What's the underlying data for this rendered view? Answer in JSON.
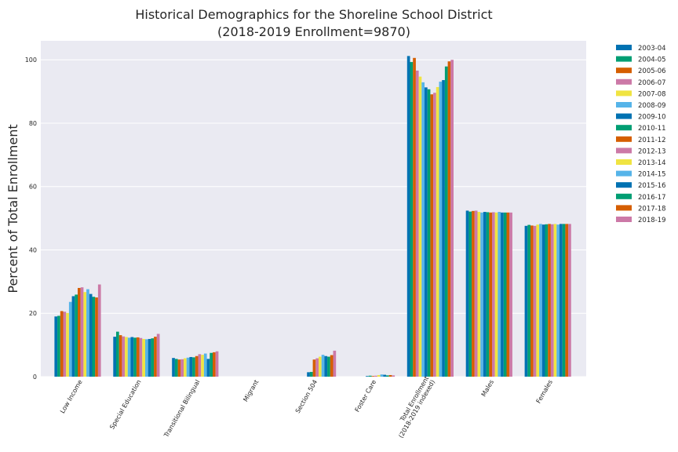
{
  "chart_data": {
    "type": "bar",
    "title": "Historical Demographics for the Shoreline School District",
    "subtitle": "(2018-2019 Enrollment=9870)",
    "xlabel": "",
    "ylabel": "Percent of Total Enrollment",
    "ylim": [
      0,
      106
    ],
    "yticks": [
      0,
      20,
      40,
      60,
      80,
      100
    ],
    "grid": true,
    "legend_position": "outside-right",
    "categories": [
      "Low Income",
      "Special Education",
      "Transitional Bilingual",
      "Migrant",
      "Section 504",
      "Foster Care",
      "Total Enrollment\n(2018-2019 indexed)",
      "Males",
      "Females"
    ],
    "series": [
      {
        "name": "2003-04",
        "color": "#0072b2",
        "values": [
          19.0,
          12.6,
          5.9,
          0.0,
          0.0,
          0.0,
          101.2,
          52.4,
          47.6
        ]
      },
      {
        "name": "2004-05",
        "color": "#009e73",
        "values": [
          19.2,
          14.2,
          5.6,
          0.0,
          0.0,
          0.0,
          99.3,
          52.1,
          47.9
        ]
      },
      {
        "name": "2005-06",
        "color": "#d55e00",
        "values": [
          20.7,
          13.1,
          5.4,
          0.0,
          0.0,
          0.0,
          100.6,
          52.3,
          47.7
        ]
      },
      {
        "name": "2006-07",
        "color": "#cc79a7",
        "values": [
          20.5,
          12.7,
          5.5,
          0.0,
          0.0,
          0.0,
          96.6,
          52.4,
          47.6
        ]
      },
      {
        "name": "2007-08",
        "color": "#f0e442",
        "values": [
          20.1,
          12.5,
          5.8,
          0.0,
          0.0,
          0.0,
          94.7,
          52.0,
          48.0
        ]
      },
      {
        "name": "2008-09",
        "color": "#56b4e9",
        "values": [
          23.6,
          12.3,
          6.0,
          0.0,
          0.0,
          0.0,
          92.9,
          51.8,
          48.2
        ]
      },
      {
        "name": "2009-10",
        "color": "#0072b2",
        "values": [
          25.4,
          12.5,
          6.2,
          0.0,
          1.4,
          0.2,
          91.3,
          52.0,
          48.0
        ]
      },
      {
        "name": "2010-11",
        "color": "#009e73",
        "values": [
          25.9,
          12.3,
          6.1,
          0.0,
          1.5,
          0.3,
          90.7,
          51.9,
          48.1
        ]
      },
      {
        "name": "2011-12",
        "color": "#d55e00",
        "values": [
          28.0,
          12.4,
          6.5,
          0.0,
          5.4,
          0.2,
          89.1,
          51.8,
          48.2
        ]
      },
      {
        "name": "2012-13",
        "color": "#cc79a7",
        "values": [
          28.2,
          12.2,
          7.1,
          0.0,
          5.8,
          0.3,
          89.6,
          51.9,
          48.1
        ]
      },
      {
        "name": "2013-14",
        "color": "#f0e442",
        "values": [
          26.7,
          11.9,
          6.9,
          0.0,
          6.3,
          0.5,
          91.4,
          51.8,
          48.2
        ]
      },
      {
        "name": "2014-15",
        "color": "#56b4e9",
        "values": [
          27.6,
          11.8,
          7.3,
          0.0,
          6.9,
          0.7,
          93.1,
          52.0,
          48.0
        ]
      },
      {
        "name": "2015-16",
        "color": "#0072b2",
        "values": [
          26.1,
          11.9,
          5.6,
          0.0,
          6.5,
          0.6,
          93.6,
          51.8,
          48.2
        ]
      },
      {
        "name": "2016-17",
        "color": "#009e73",
        "values": [
          25.2,
          12.1,
          7.5,
          0.0,
          6.3,
          0.4,
          97.9,
          51.8,
          48.2
        ]
      },
      {
        "name": "2017-18",
        "color": "#d55e00",
        "values": [
          25.0,
          12.6,
          7.7,
          0.0,
          6.8,
          0.5,
          99.5,
          51.8,
          48.2
        ]
      },
      {
        "name": "2018-19",
        "color": "#cc79a7",
        "values": [
          29.1,
          13.5,
          8.0,
          0.0,
          8.2,
          0.4,
          100.0,
          51.8,
          48.2
        ]
      }
    ]
  }
}
